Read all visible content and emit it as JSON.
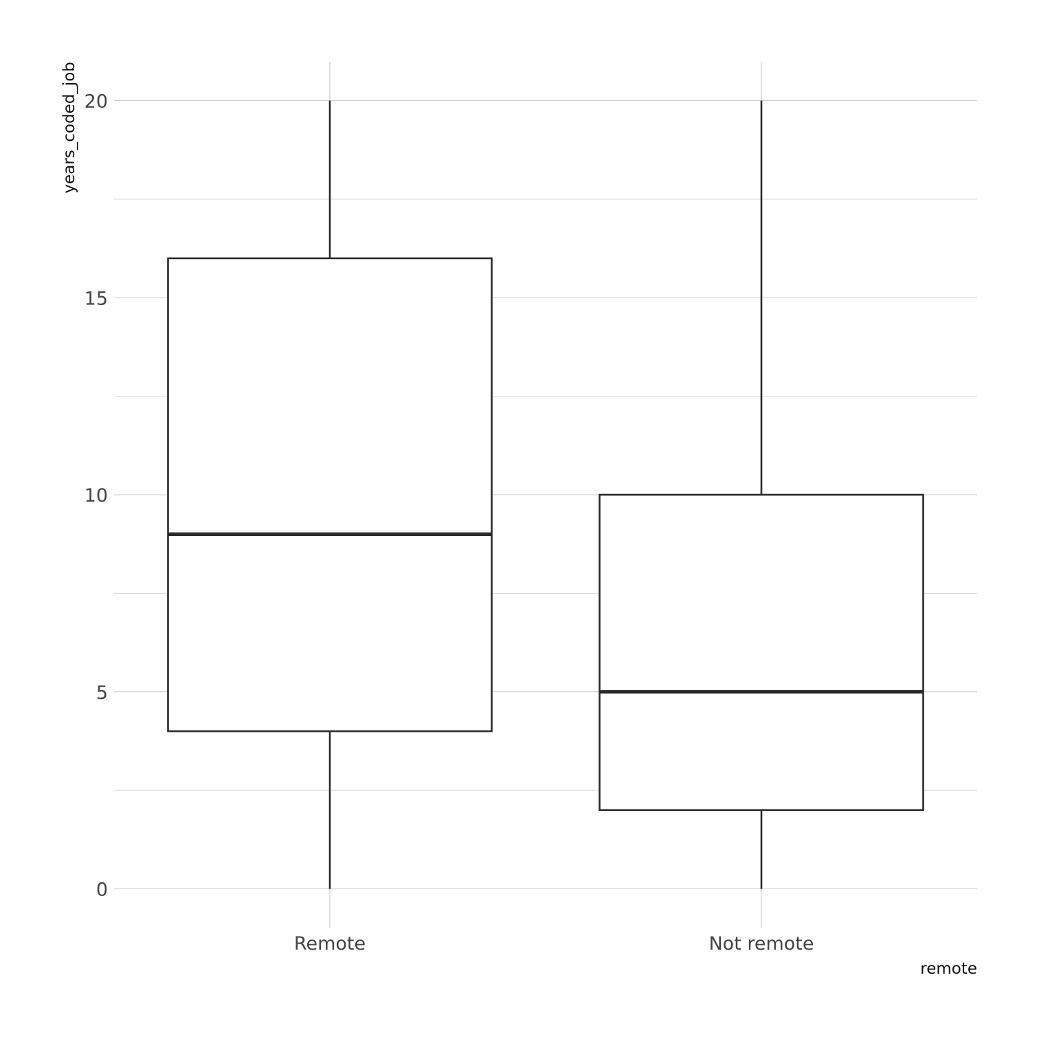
{
  "chart_data": {
    "type": "boxplot",
    "title": "",
    "xlabel": "remote",
    "ylabel": "years_coded_job",
    "categories": [
      "Remote",
      "Not remote"
    ],
    "ylim": [
      -0.6,
      20.5
    ],
    "y_ticks": [
      0,
      5,
      10,
      15,
      20
    ],
    "y_minor_ticks": [
      2.5,
      7.5,
      12.5,
      17.5
    ],
    "grid": true,
    "boxes": [
      {
        "category": "Remote",
        "whisker_low": 0,
        "q1": 4,
        "median": 9,
        "q3": 16,
        "whisker_high": 20
      },
      {
        "category": "Not remote",
        "whisker_low": 0,
        "q1": 2,
        "median": 5,
        "q3": 10,
        "whisker_high": 20
      }
    ]
  }
}
